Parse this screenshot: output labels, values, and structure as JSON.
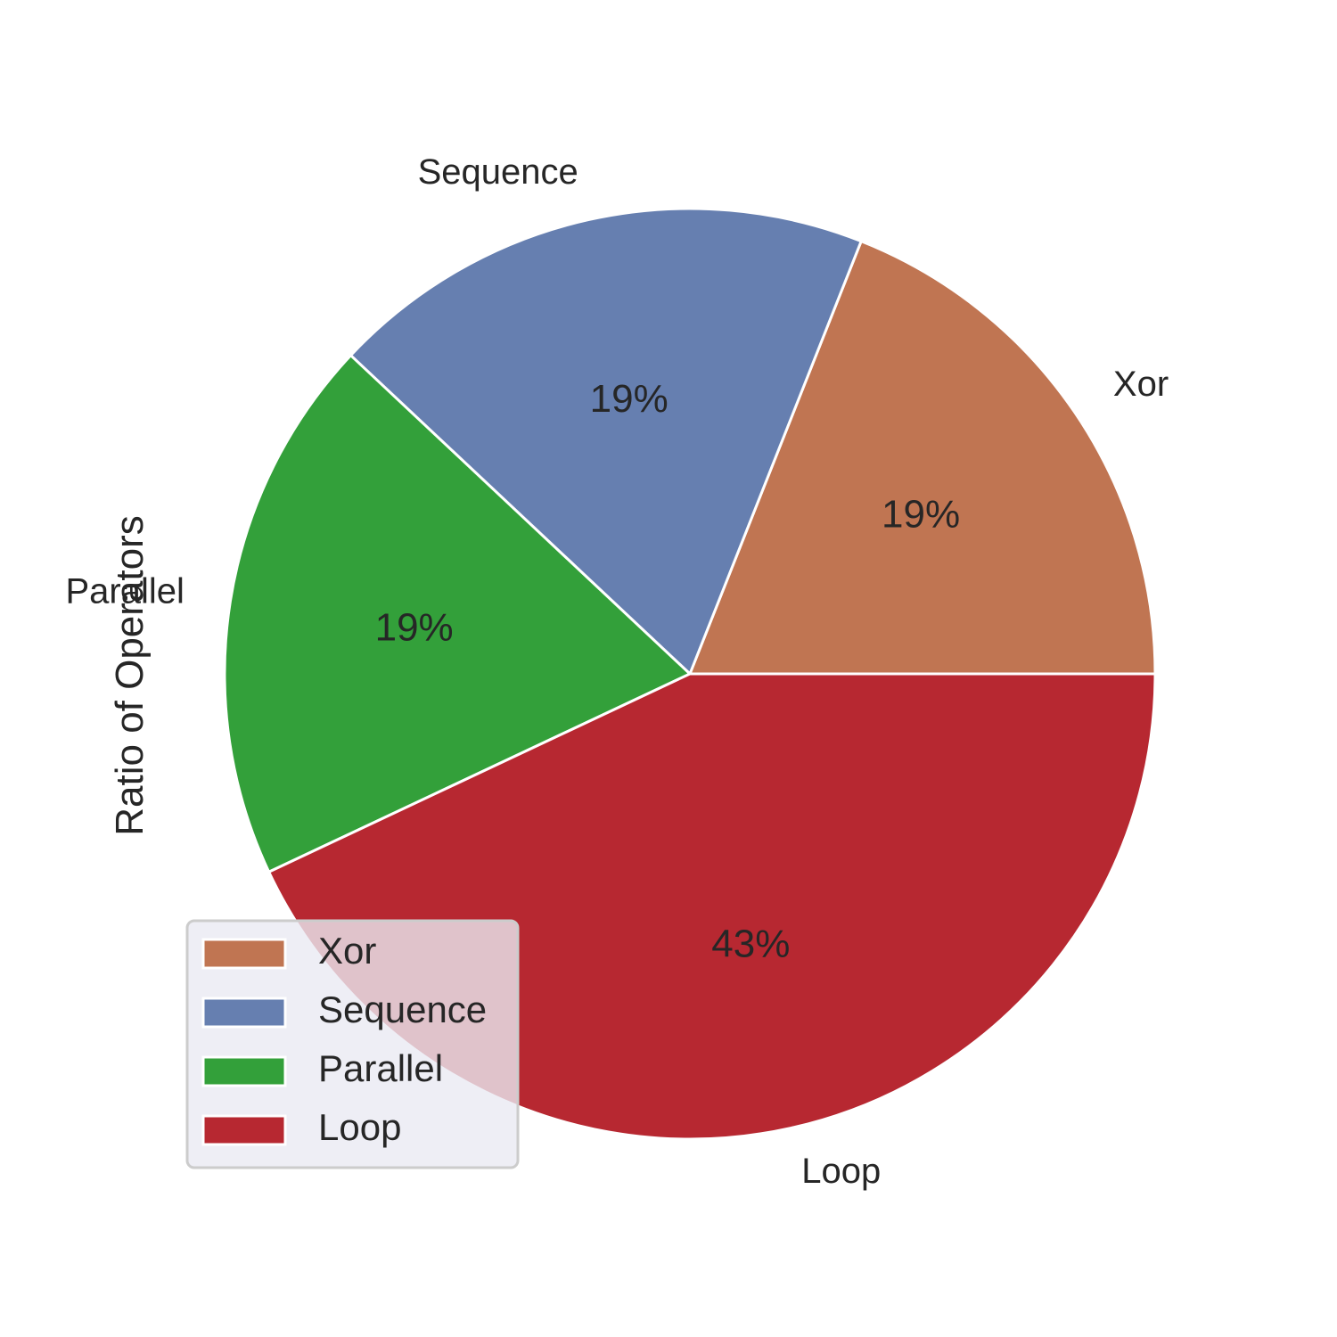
{
  "chart_data": {
    "type": "pie",
    "ylabel": "Ratio of Operators",
    "slices": [
      {
        "label": "Xor",
        "value": 19,
        "pct_label": "19%",
        "color": "#c07552"
      },
      {
        "label": "Sequence",
        "value": 19,
        "pct_label": "19%",
        "color": "#667fb0"
      },
      {
        "label": "Parallel",
        "value": 19,
        "pct_label": "19%",
        "color": "#33a03a"
      },
      {
        "label": "Loop",
        "value": 43,
        "pct_label": "43%",
        "color": "#b72831"
      }
    ],
    "start_angle_deg": 0,
    "direction": "counterclockwise",
    "legend": {
      "position": "lower-left",
      "entries": [
        "Xor",
        "Sequence",
        "Parallel",
        "Loop"
      ]
    }
  }
}
